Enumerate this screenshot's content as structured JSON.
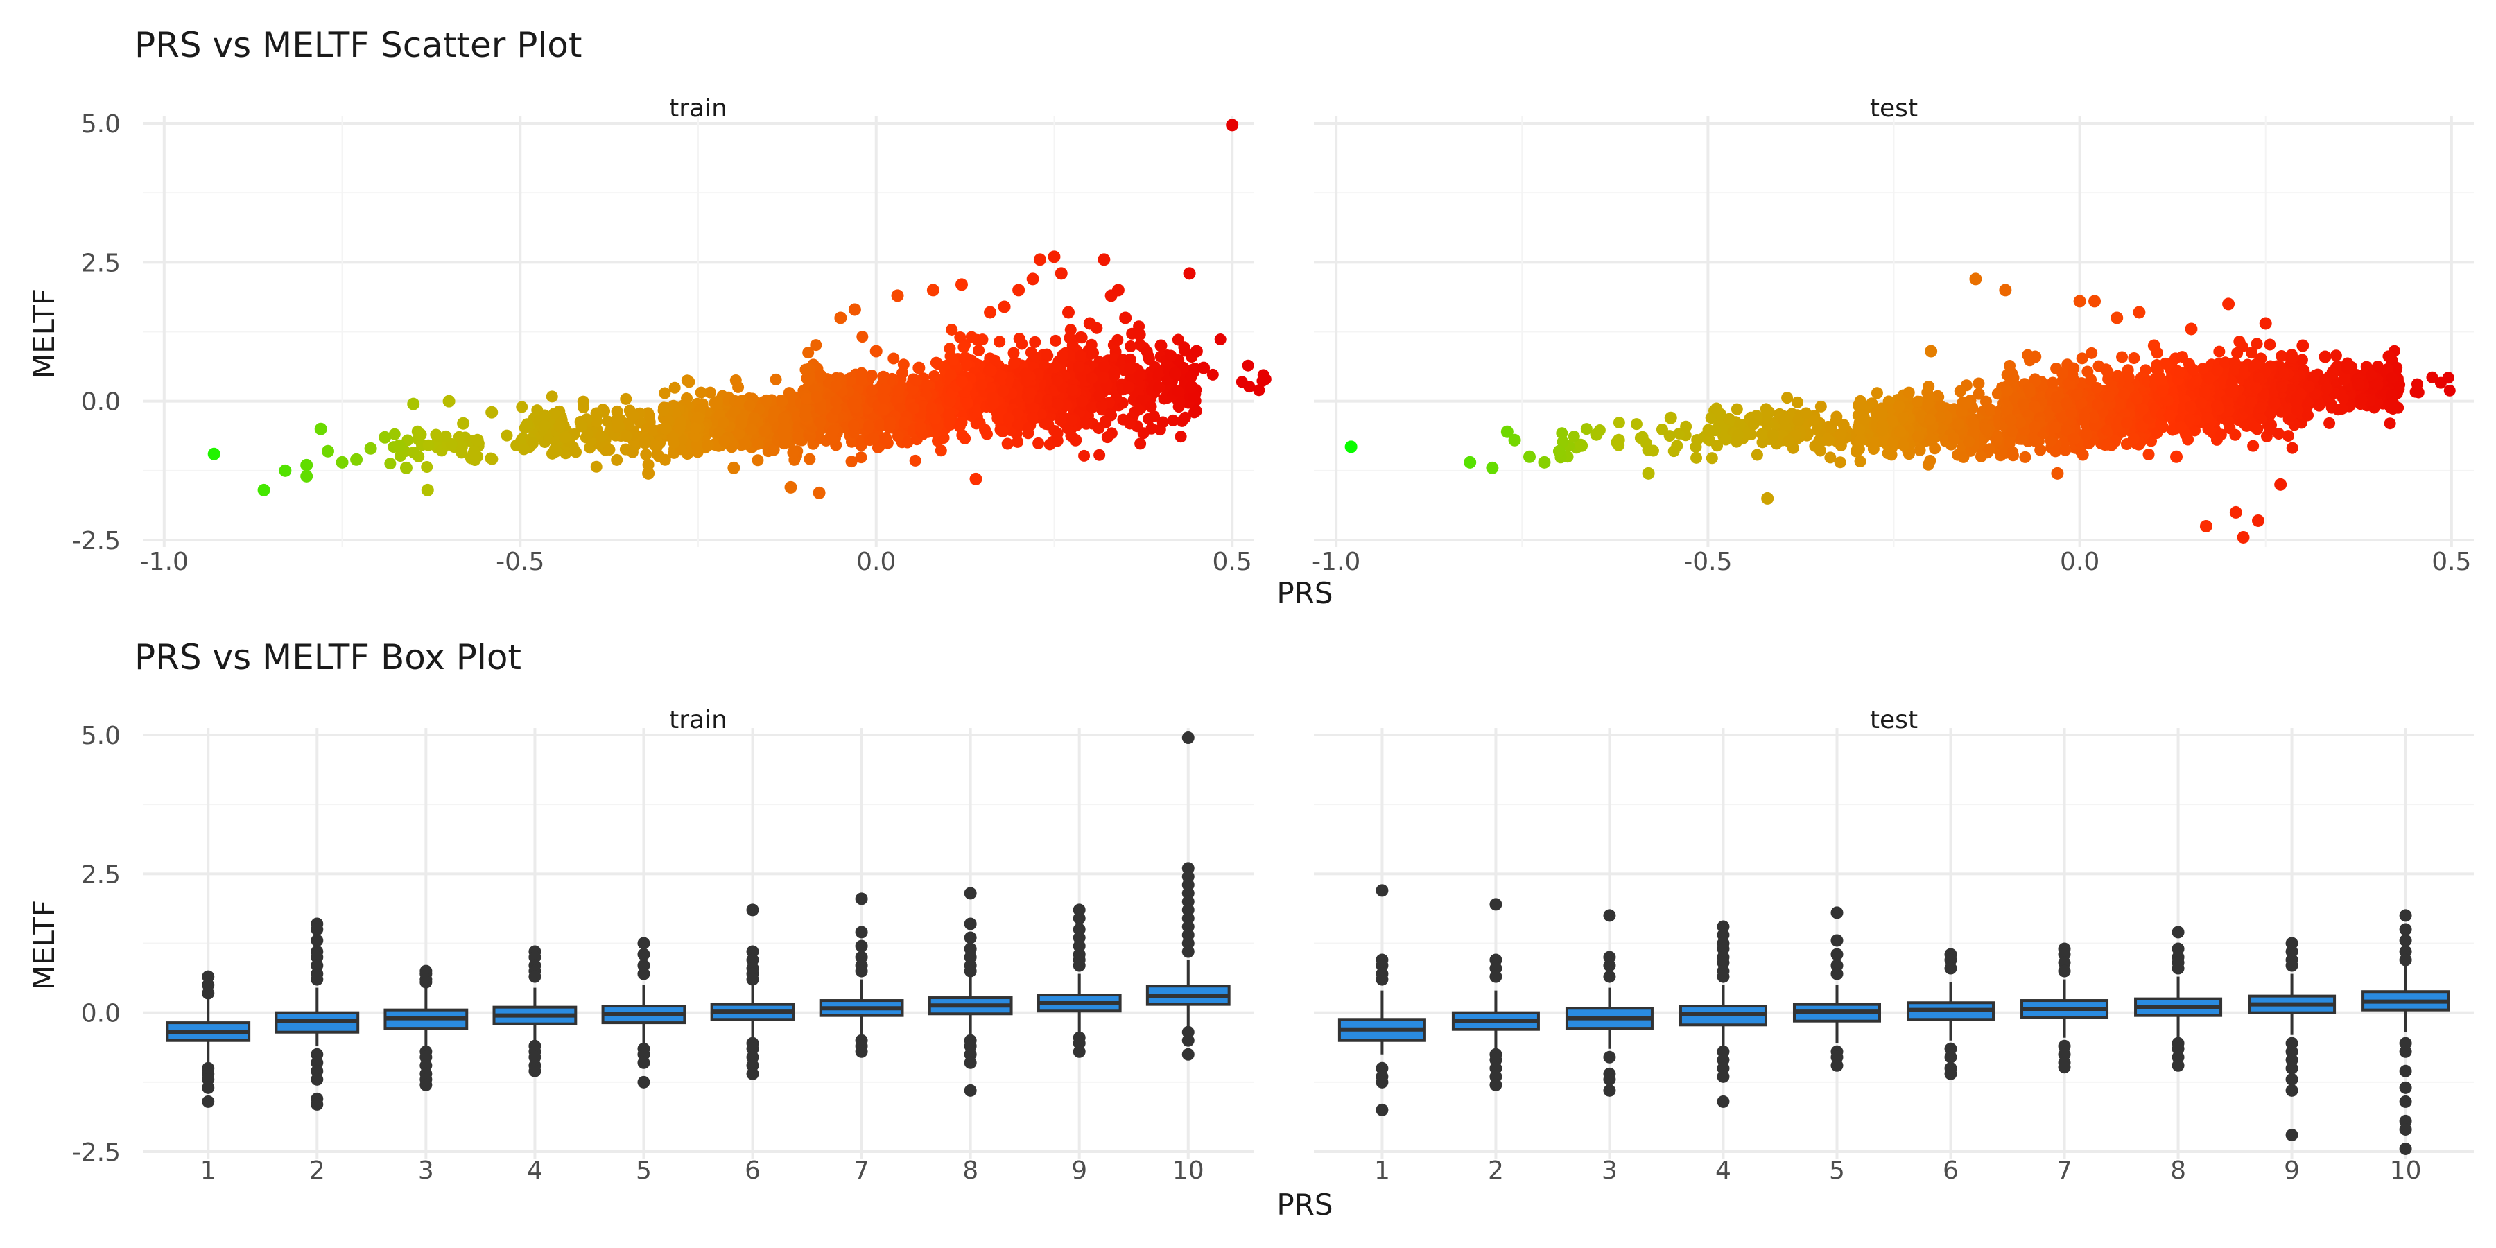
{
  "colors": {
    "background": "#ffffff",
    "grid_major": "#ebebeb",
    "grid_minor": "#f4f4f4",
    "text_main": "#1a1a1a",
    "text_axis": "#4d4d4d",
    "box_fill": "#2a8be0",
    "box_line": "#333333",
    "outlier": "#333333",
    "gradient": [
      "#00ff00",
      "#b5c000",
      "#e08a00",
      "#ff3300",
      "#e60000"
    ]
  },
  "chart_data": [
    {
      "type": "scatter",
      "title": "PRS vs MELTF Scatter Plot",
      "xlabel": "PRS",
      "ylabel": "MELTF",
      "color_encoding": "gradient by x (green to red)",
      "xlim": [
        -1.0,
        0.5
      ],
      "ylim": [
        -2.5,
        5.0
      ],
      "x_ticks": [
        "-1.0",
        "-0.5",
        "0.0",
        "0.5"
      ],
      "y_ticks": [
        "-2.5",
        "0.0",
        "2.5",
        "5.0"
      ],
      "grid": true,
      "panels": [
        {
          "name": "train",
          "cloud": [
            {
              "x": -0.6,
              "mean": -0.8,
              "sd": 0.2,
              "n": 40
            },
            {
              "x": -0.4,
              "mean": -0.55,
              "sd": 0.25,
              "n": 160
            },
            {
              "x": -0.2,
              "mean": -0.4,
              "sd": 0.3,
              "n": 500
            },
            {
              "x": 0.0,
              "mean": -0.1,
              "sd": 0.35,
              "n": 750
            },
            {
              "x": 0.2,
              "mean": 0.15,
              "sd": 0.4,
              "n": 650
            },
            {
              "x": 0.35,
              "mean": 0.3,
              "sd": 0.45,
              "n": 260
            },
            {
              "x": 0.45,
              "mean": 0.5,
              "sd": 0.3,
              "n": 20
            }
          ],
          "points": [
            [
              -0.93,
              -0.95
            ],
            [
              -0.86,
              -1.6
            ],
            [
              -0.83,
              -1.25
            ],
            [
              -0.8,
              -1.15
            ],
            [
              -0.8,
              -1.35
            ],
            [
              -0.78,
              -0.5
            ],
            [
              -0.77,
              -0.9
            ],
            [
              -0.75,
              -1.1
            ],
            [
              -0.73,
              -1.05
            ],
            [
              -0.71,
              -0.85
            ],
            [
              -0.69,
              -0.65
            ],
            [
              -0.67,
              -0.8
            ],
            [
              -0.66,
              -1.2
            ],
            [
              -0.65,
              -0.05
            ],
            [
              -0.64,
              -0.6
            ],
            [
              -0.63,
              -1.6
            ],
            [
              -0.6,
              0.0
            ],
            [
              -0.58,
              -0.4
            ],
            [
              -0.56,
              -0.7
            ],
            [
              -0.54,
              -0.2
            ],
            [
              -0.45,
              -0.9
            ],
            [
              -0.32,
              -1.3
            ],
            [
              -0.2,
              -1.2
            ],
            [
              -0.12,
              -1.55
            ],
            [
              -0.08,
              -1.65
            ],
            [
              -0.05,
              1.5
            ],
            [
              -0.03,
              1.65
            ],
            [
              0.0,
              0.9
            ],
            [
              0.03,
              1.9
            ],
            [
              0.06,
              0.6
            ],
            [
              0.08,
              2.0
            ],
            [
              0.12,
              2.1
            ],
            [
              0.14,
              -1.4
            ],
            [
              0.16,
              1.6
            ],
            [
              0.18,
              1.7
            ],
            [
              0.2,
              2.0
            ],
            [
              0.22,
              2.2
            ],
            [
              0.23,
              2.55
            ],
            [
              0.25,
              2.6
            ],
            [
              0.26,
              2.3
            ],
            [
              0.27,
              1.6
            ],
            [
              0.28,
              -0.7
            ],
            [
              0.3,
              1.4
            ],
            [
              0.32,
              2.55
            ],
            [
              0.33,
              1.9
            ],
            [
              0.34,
              2.0
            ],
            [
              0.35,
              1.5
            ],
            [
              0.37,
              1.2
            ],
            [
              0.4,
              1.0
            ],
            [
              0.42,
              0.5
            ],
            [
              0.44,
              2.3
            ],
            [
              0.45,
              0.9
            ],
            [
              0.46,
              0.6
            ],
            [
              0.5,
              4.97
            ]
          ]
        },
        {
          "name": "test",
          "cloud": [
            {
              "x": -0.6,
              "mean": -0.75,
              "sd": 0.2,
              "n": 30
            },
            {
              "x": -0.4,
              "mean": -0.55,
              "sd": 0.25,
              "n": 150
            },
            {
              "x": -0.2,
              "mean": -0.4,
              "sd": 0.3,
              "n": 450
            },
            {
              "x": 0.0,
              "mean": -0.15,
              "sd": 0.35,
              "n": 700
            },
            {
              "x": 0.2,
              "mean": 0.1,
              "sd": 0.35,
              "n": 600
            },
            {
              "x": 0.33,
              "mean": 0.25,
              "sd": 0.3,
              "n": 260
            },
            {
              "x": 0.4,
              "mean": 0.3,
              "sd": 0.2,
              "n": 20
            }
          ],
          "points": [
            [
              -0.98,
              -0.82
            ],
            [
              -0.82,
              -1.1
            ],
            [
              -0.79,
              -1.2
            ],
            [
              -0.77,
              -0.55
            ],
            [
              -0.76,
              -0.7
            ],
            [
              -0.74,
              -1.0
            ],
            [
              -0.72,
              -1.1
            ],
            [
              -0.7,
              -0.9
            ],
            [
              -0.67,
              -0.8
            ],
            [
              -0.65,
              -0.6
            ],
            [
              -0.62,
              -0.7
            ],
            [
              -0.58,
              -1.3
            ],
            [
              -0.55,
              -0.3
            ],
            [
              -0.42,
              -1.75
            ],
            [
              -0.3,
              -0.9
            ],
            [
              -0.2,
              0.9
            ],
            [
              -0.14,
              2.2
            ],
            [
              -0.1,
              2.0
            ],
            [
              -0.06,
              0.8
            ],
            [
              -0.03,
              -1.3
            ],
            [
              0.0,
              1.8
            ],
            [
              0.02,
              1.8
            ],
            [
              0.05,
              1.5
            ],
            [
              0.08,
              1.6
            ],
            [
              0.1,
              1.0
            ],
            [
              0.13,
              -1.0
            ],
            [
              0.15,
              1.3
            ],
            [
              0.17,
              -2.25
            ],
            [
              0.2,
              1.75
            ],
            [
              0.21,
              -2.0
            ],
            [
              0.22,
              -2.45
            ],
            [
              0.24,
              -2.15
            ],
            [
              0.25,
              1.4
            ],
            [
              0.27,
              -1.5
            ],
            [
              0.3,
              1.0
            ],
            [
              0.33,
              0.8
            ],
            [
              0.36,
              0.6
            ],
            [
              0.4,
              0.3
            ],
            [
              0.42,
              -0.05
            ]
          ]
        }
      ]
    },
    {
      "type": "box",
      "title": "PRS vs MELTF Box Plot",
      "xlabel": "PRS",
      "ylabel": "MELTF",
      "categories": [
        "1",
        "2",
        "3",
        "4",
        "5",
        "6",
        "7",
        "8",
        "9",
        "10"
      ],
      "ylim": [
        -2.5,
        5.0
      ],
      "y_ticks": [
        "-2.5",
        "0.0",
        "2.5",
        "5.0"
      ],
      "grid": true,
      "panels": [
        {
          "name": "train",
          "boxes": [
            {
              "q1": -0.5,
              "median": -0.35,
              "q3": -0.18,
              "lo": -0.9,
              "hi": 0.25,
              "outliers": [
                0.65,
                0.5,
                0.35,
                -1.0,
                -1.1,
                -1.2,
                -1.35,
                -1.6
              ]
            },
            {
              "q1": -0.35,
              "median": -0.15,
              "q3": 0.0,
              "lo": -0.6,
              "hi": 0.45,
              "outliers": [
                1.6,
                1.5,
                1.3,
                1.1,
                1.0,
                0.85,
                0.7,
                0.6,
                -0.75,
                -0.9,
                -1.05,
                -1.2,
                -1.55,
                -1.65
              ]
            },
            {
              "q1": -0.28,
              "median": -0.1,
              "q3": 0.05,
              "lo": -0.6,
              "hi": 0.45,
              "outliers": [
                0.75,
                0.7,
                0.6,
                0.55,
                -0.7,
                -0.8,
                -0.95,
                -1.1,
                -1.2,
                -1.3
              ]
            },
            {
              "q1": -0.2,
              "median": -0.05,
              "q3": 0.1,
              "lo": -0.55,
              "hi": 0.45,
              "outliers": [
                1.1,
                1.0,
                0.85,
                0.75,
                0.65,
                -0.6,
                -0.7,
                -0.8,
                -0.95,
                -1.05
              ]
            },
            {
              "q1": -0.18,
              "median": -0.02,
              "q3": 0.12,
              "lo": -0.55,
              "hi": 0.5,
              "outliers": [
                1.25,
                1.05,
                0.85,
                0.7,
                -0.65,
                -0.75,
                -0.9,
                -1.25
              ]
            },
            {
              "q1": -0.12,
              "median": 0.02,
              "q3": 0.15,
              "lo": -0.5,
              "hi": 0.55,
              "outliers": [
                1.85,
                1.1,
                0.95,
                0.8,
                0.7,
                0.6,
                -0.55,
                -0.65,
                -0.8,
                -0.95,
                -1.1
              ]
            },
            {
              "q1": -0.05,
              "median": 0.08,
              "q3": 0.22,
              "lo": -0.4,
              "hi": 0.6,
              "outliers": [
                2.05,
                1.45,
                1.2,
                1.0,
                0.85,
                0.75,
                -0.5,
                -0.6,
                -0.7
              ]
            },
            {
              "q1": -0.02,
              "median": 0.13,
              "q3": 0.27,
              "lo": -0.4,
              "hi": 0.65,
              "outliers": [
                2.15,
                1.6,
                1.35,
                1.15,
                1.0,
                0.85,
                0.75,
                -0.5,
                -0.6,
                -0.75,
                -0.9,
                -1.4
              ]
            },
            {
              "q1": 0.03,
              "median": 0.17,
              "q3": 0.32,
              "lo": -0.35,
              "hi": 0.7,
              "outliers": [
                1.85,
                1.7,
                1.5,
                1.35,
                1.2,
                1.05,
                0.95,
                0.85,
                -0.45,
                -0.55,
                -0.7
              ]
            },
            {
              "q1": 0.15,
              "median": 0.3,
              "q3": 0.48,
              "lo": -0.25,
              "hi": 0.95,
              "outliers": [
                4.95,
                2.6,
                2.45,
                2.3,
                2.15,
                2.0,
                1.85,
                1.7,
                1.55,
                1.4,
                1.25,
                1.1,
                -0.35,
                -0.5,
                -0.75
              ]
            }
          ]
        },
        {
          "name": "test",
          "boxes": [
            {
              "q1": -0.5,
              "median": -0.3,
              "q3": -0.12,
              "lo": -0.75,
              "hi": 0.4,
              "outliers": [
                2.2,
                0.95,
                0.85,
                0.7,
                0.6,
                -1.0,
                -1.15,
                -1.25,
                -1.75
              ]
            },
            {
              "q1": -0.3,
              "median": -0.15,
              "q3": 0.0,
              "lo": -0.65,
              "hi": 0.4,
              "outliers": [
                1.95,
                0.95,
                0.8,
                0.65,
                -0.75,
                -0.85,
                -1.0,
                -1.15,
                -1.3
              ]
            },
            {
              "q1": -0.28,
              "median": -0.1,
              "q3": 0.08,
              "lo": -0.65,
              "hi": 0.45,
              "outliers": [
                1.75,
                1.0,
                0.85,
                0.65,
                -0.8,
                -1.1,
                -1.2,
                -1.4
              ]
            },
            {
              "q1": -0.22,
              "median": -0.02,
              "q3": 0.12,
              "lo": -0.6,
              "hi": 0.5,
              "outliers": [
                1.55,
                1.4,
                1.25,
                1.15,
                1.0,
                0.9,
                0.75,
                0.65,
                -0.7,
                -0.85,
                -1.0,
                -1.15,
                -1.6
              ]
            },
            {
              "q1": -0.15,
              "median": 0.02,
              "q3": 0.15,
              "lo": -0.55,
              "hi": 0.5,
              "outliers": [
                1.8,
                1.3,
                1.05,
                0.85,
                0.7,
                -0.7,
                -0.8,
                -0.95
              ]
            },
            {
              "q1": -0.12,
              "median": 0.05,
              "q3": 0.18,
              "lo": -0.5,
              "hi": 0.55,
              "outliers": [
                1.05,
                0.95,
                0.8,
                -0.65,
                -0.8,
                -1.0,
                -1.1
              ]
            },
            {
              "q1": -0.08,
              "median": 0.07,
              "q3": 0.22,
              "lo": -0.45,
              "hi": 0.6,
              "outliers": [
                1.15,
                1.05,
                0.9,
                0.75,
                -0.6,
                -0.75,
                -0.9,
                -0.98
              ]
            },
            {
              "q1": -0.05,
              "median": 0.1,
              "q3": 0.25,
              "lo": -0.45,
              "hi": 0.65,
              "outliers": [
                1.45,
                1.15,
                1.0,
                0.9,
                0.8,
                -0.55,
                -0.65,
                -0.8,
                -0.95
              ]
            },
            {
              "q1": 0.0,
              "median": 0.15,
              "q3": 0.3,
              "lo": -0.4,
              "hi": 0.7,
              "outliers": [
                1.25,
                1.1,
                0.95,
                0.85,
                -0.55,
                -0.7,
                -0.85,
                -1.0,
                -1.2,
                -1.4,
                -2.2
              ]
            },
            {
              "q1": 0.05,
              "median": 0.2,
              "q3": 0.38,
              "lo": -0.35,
              "hi": 0.85,
              "outliers": [
                1.75,
                1.5,
                1.3,
                1.1,
                0.95,
                -0.55,
                -0.7,
                -1.05,
                -1.35,
                -1.6,
                -1.95,
                -2.1,
                -2.45
              ]
            }
          ]
        }
      ]
    }
  ]
}
